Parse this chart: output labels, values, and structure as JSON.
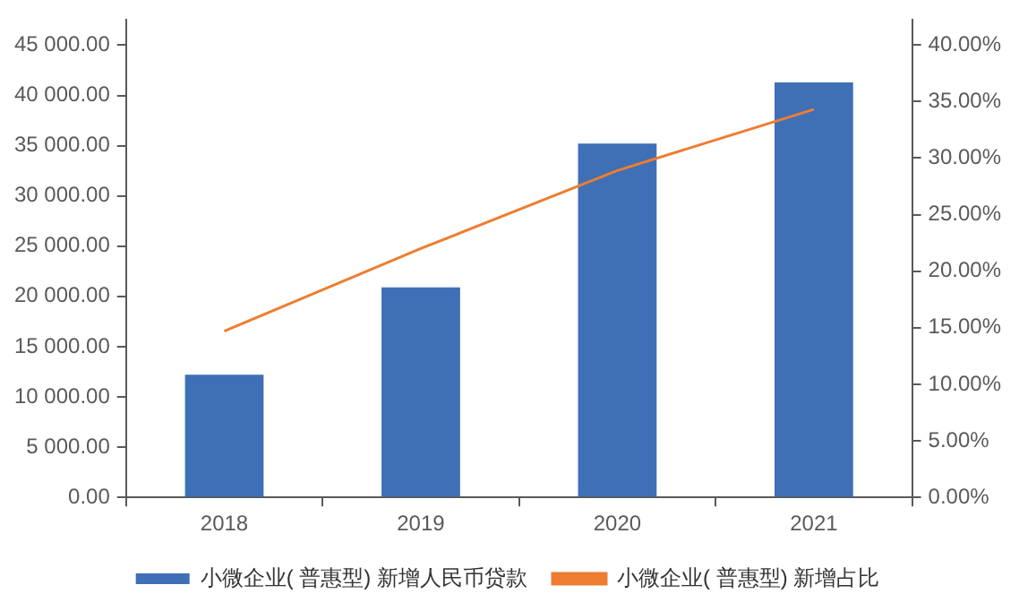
{
  "chart_data": {
    "type": "bar",
    "categories": [
      "2018",
      "2019",
      "2020",
      "2021"
    ],
    "series": [
      {
        "name": "小微企业( 普惠型) 新增人民币贷款",
        "color": "#3f70b6",
        "values": [
          12200,
          20900,
          35200,
          41300
        ]
      },
      {
        "name": "小微企业( 普惠型) 新增占比",
        "type": "line",
        "axis": "y2",
        "color": "#ed7d31",
        "values": [
          14.7,
          22.0,
          28.9,
          34.3
        ]
      }
    ],
    "ylim": [
      0,
      47500
    ],
    "yticks": [
      {
        "value": 0,
        "label": "0.00"
      },
      {
        "value": 5000,
        "label": "5 000.00"
      },
      {
        "value": 10000,
        "label": "10 000.00"
      },
      {
        "value": 15000,
        "label": "15 000.00"
      },
      {
        "value": 20000,
        "label": "20 000.00"
      },
      {
        "value": 25000,
        "label": "25 000.00"
      },
      {
        "value": 30000,
        "label": "30 000.00"
      },
      {
        "value": 35000,
        "label": "35 000.00"
      },
      {
        "value": 40000,
        "label": "40 000.00"
      },
      {
        "value": 45000,
        "label": "45 000.00"
      }
    ],
    "y2lim": [
      0,
      42.2
    ],
    "y2ticks": [
      {
        "value": 0,
        "label": "0.00%"
      },
      {
        "value": 5,
        "label": "5.00%"
      },
      {
        "value": 10,
        "label": "10.00%"
      },
      {
        "value": 15,
        "label": "15.00%"
      },
      {
        "value": 20,
        "label": "20.00%"
      },
      {
        "value": 25,
        "label": "25.00%"
      },
      {
        "value": 30,
        "label": "30.00%"
      },
      {
        "value": 35,
        "label": "35.00%"
      },
      {
        "value": 40,
        "label": "40.00%"
      }
    ],
    "grid": false,
    "legend": "bottom",
    "marker": "none"
  }
}
